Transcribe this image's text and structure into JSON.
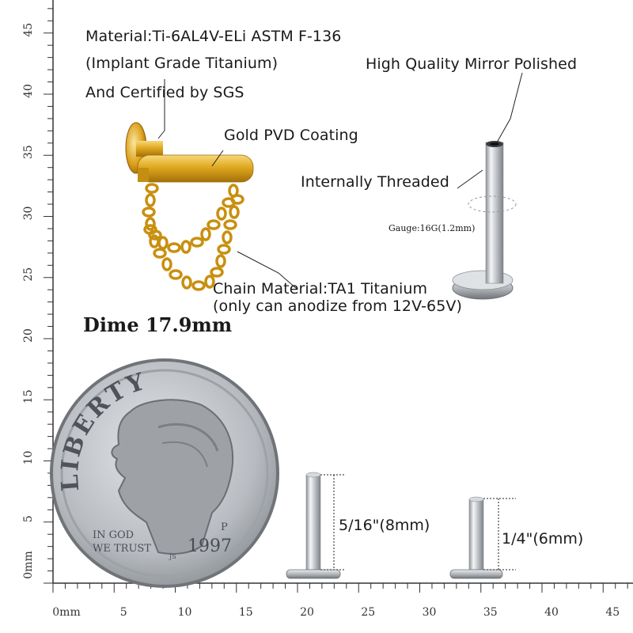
{
  "specs": {
    "material_line1": "Material:Ti-6AL4V-ELi ASTM F-136",
    "material_line2": "(Implant Grade Titanium)",
    "material_line3": "And Certified by SGS",
    "polish": "High Quality Mirror Polished",
    "coating": "Gold PVD Coating",
    "thread": "Internally Threaded",
    "gauge": "Gauge:16G(1.2mm)",
    "chain_line1": "Chain Material:TA1 Titanium",
    "chain_line2": "(only can anodize from 12V-65V)"
  },
  "dime": {
    "title": "Dime 17.9mm",
    "word_liberty": "LIBERTY",
    "motto_line1": "IN GOD",
    "motto_line2": "WE TRUST",
    "year": "1997",
    "mint_mark": "P",
    "initials": "JS"
  },
  "sizes": {
    "long_post": "5/16\"(8mm)",
    "short_post": "1/4\"(6mm)"
  },
  "ruler": {
    "x_zero_label": "0mm",
    "x_labels": [
      "5",
      "10",
      "15",
      "20",
      "25",
      "30",
      "35",
      "40",
      "45"
    ],
    "y_zero_label": "0mm",
    "y_labels": [
      "5",
      "10",
      "15",
      "20",
      "25",
      "30",
      "35",
      "40",
      "45"
    ]
  },
  "colors": {
    "gold": "#d9a21f",
    "gold_dark": "#9c6a08",
    "silver": "#c8cbd0",
    "coin": "#bfc3c8"
  }
}
